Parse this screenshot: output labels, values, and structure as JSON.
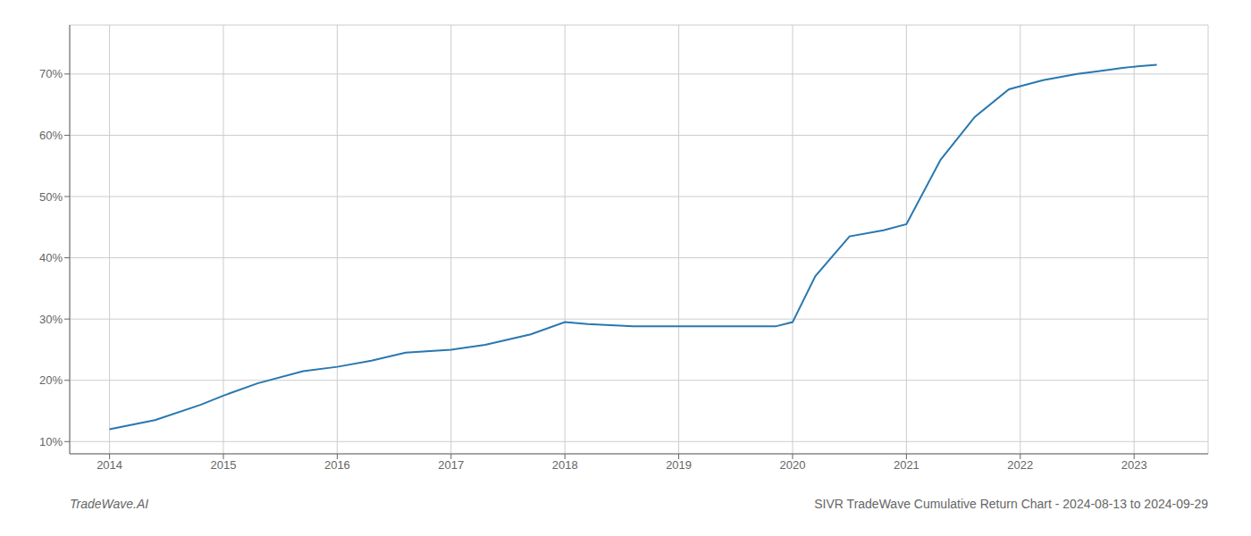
{
  "chart_data": {
    "type": "line",
    "title": "SIVR TradeWave Cumulative Return Chart - 2024-08-13 to 2024-09-29",
    "annotations": [
      "TradeWave.AI"
    ],
    "x": [
      2014.0,
      2014.4,
      2014.8,
      2015.0,
      2015.3,
      2015.7,
      2016.0,
      2016.3,
      2016.6,
      2017.0,
      2017.3,
      2017.7,
      2018.0,
      2018.2,
      2018.6,
      2018.9,
      2019.0,
      2019.2,
      2019.5,
      2019.7,
      2019.85,
      2020.0,
      2020.2,
      2020.5,
      2020.8,
      2021.0,
      2021.3,
      2021.6,
      2021.9,
      2022.0,
      2022.2,
      2022.5,
      2022.7,
      2022.9,
      2023.0,
      2023.2
    ],
    "values": [
      12.0,
      13.5,
      16.0,
      17.5,
      19.5,
      21.5,
      22.2,
      23.2,
      24.5,
      25.0,
      25.8,
      27.5,
      29.5,
      29.2,
      28.8,
      28.8,
      28.8,
      28.8,
      28.8,
      28.8,
      28.8,
      29.5,
      37.0,
      43.5,
      44.5,
      45.5,
      56.0,
      63.0,
      67.5,
      68.0,
      69.0,
      70.0,
      70.5,
      71.0,
      71.2,
      71.5
    ],
    "color": "#2878b0",
    "xlim": [
      2013.65,
      2023.65
    ],
    "ylim": [
      8,
      78
    ],
    "xticks": [
      2014,
      2015,
      2016,
      2017,
      2018,
      2019,
      2020,
      2021,
      2022,
      2023
    ],
    "yticks": [
      {
        "value": 10,
        "label": "10%"
      },
      {
        "value": 20,
        "label": "20%"
      },
      {
        "value": 30,
        "label": "30%"
      },
      {
        "value": 40,
        "label": "40%"
      },
      {
        "value": 50,
        "label": "50%"
      },
      {
        "value": 60,
        "label": "60%"
      },
      {
        "value": 70,
        "label": "70%"
      }
    ],
    "grid": true
  }
}
